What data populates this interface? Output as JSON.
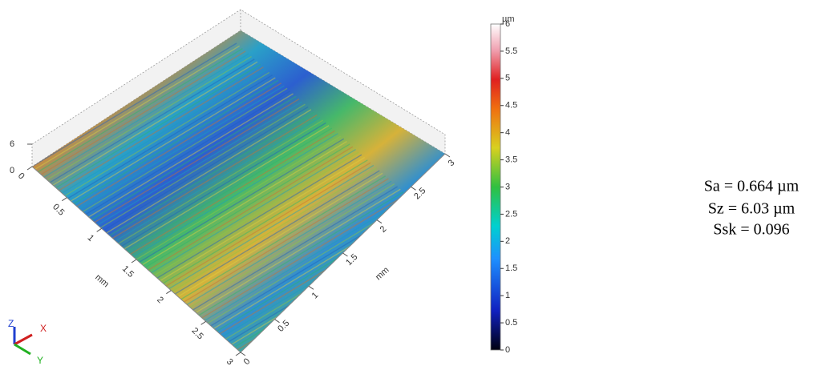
{
  "surface": {
    "z_axis": {
      "ticks": [
        "0",
        "6"
      ]
    },
    "x_axis": {
      "label": "mm",
      "ticks": [
        "0",
        "0.5",
        "1",
        "1.5",
        "2",
        "2.5",
        "3"
      ]
    },
    "y_axis": {
      "label": "mm",
      "ticks": [
        "0",
        "0.5",
        "1",
        "1.5",
        "2",
        "2.5",
        "3"
      ]
    }
  },
  "colorbar": {
    "unit": "µm",
    "ticks": [
      "0",
      "0.5",
      "1",
      "1.5",
      "2",
      "2.5",
      "3",
      "3.5",
      "4",
      "4.5",
      "5",
      "5.5",
      "6"
    ]
  },
  "triad": {
    "z": "Z",
    "x": "X",
    "y": "Y"
  },
  "stats": [
    "Sa = 0.664 µm",
    "Sz = 6.03 µm",
    "Ssk = 0.096"
  ]
}
